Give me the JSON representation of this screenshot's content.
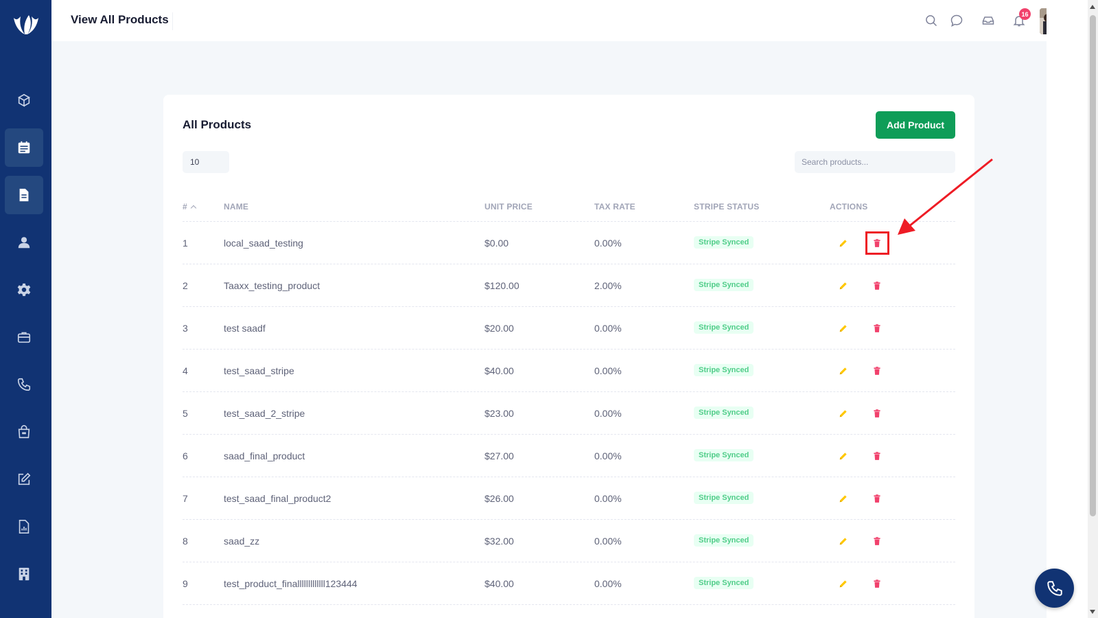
{
  "header": {
    "title": "View All Products",
    "notification_count": "16",
    "icons": [
      "search-icon",
      "chat-icon",
      "inbox-icon",
      "bell-icon"
    ]
  },
  "sidebar": {
    "items": [
      {
        "icon": "cube-icon",
        "active": false
      },
      {
        "icon": "calendar-list-icon",
        "active": true
      },
      {
        "icon": "document-icon",
        "active": true
      },
      {
        "icon": "user-icon",
        "active": false
      },
      {
        "icon": "gear-icon",
        "active": false
      },
      {
        "icon": "briefcase-icon",
        "active": false
      },
      {
        "icon": "phone-icon",
        "active": false
      },
      {
        "icon": "bag-icon",
        "active": false
      },
      {
        "icon": "edit-icon",
        "active": false
      },
      {
        "icon": "file-chart-icon",
        "active": false
      },
      {
        "icon": "building-icon",
        "active": false
      }
    ]
  },
  "card": {
    "title": "All Products",
    "add_button": "Add Product",
    "page_length": "10",
    "search_placeholder": "Search products..."
  },
  "table": {
    "columns": [
      "#",
      "NAME",
      "UNIT PRICE",
      "TAX RATE",
      "STRIPE STATUS",
      "ACTIONS"
    ],
    "rows": [
      {
        "num": "1",
        "name": "local_saad_testing",
        "price": "$0.00",
        "tax": "0.00%",
        "status": "Stripe Synced"
      },
      {
        "num": "2",
        "name": "Taaxx_testing_product",
        "price": "$120.00",
        "tax": "2.00%",
        "status": "Stripe Synced"
      },
      {
        "num": "3",
        "name": "test saadf",
        "price": "$20.00",
        "tax": "0.00%",
        "status": "Stripe Synced"
      },
      {
        "num": "4",
        "name": "test_saad_stripe",
        "price": "$40.00",
        "tax": "0.00%",
        "status": "Stripe Synced"
      },
      {
        "num": "5",
        "name": "test_saad_2_stripe",
        "price": "$23.00",
        "tax": "0.00%",
        "status": "Stripe Synced"
      },
      {
        "num": "6",
        "name": "saad_final_product",
        "price": "$27.00",
        "tax": "0.00%",
        "status": "Stripe Synced"
      },
      {
        "num": "7",
        "name": "test_saad_final_product2",
        "price": "$26.00",
        "tax": "0.00%",
        "status": "Stripe Synced"
      },
      {
        "num": "8",
        "name": "saad_zz",
        "price": "$32.00",
        "tax": "0.00%",
        "status": "Stripe Synced"
      },
      {
        "num": "9",
        "name": "test_product_finalllllllllllll123444",
        "price": "$40.00",
        "tax": "0.00%",
        "status": "Stripe Synced"
      }
    ]
  },
  "colors": {
    "sidebar": "#113373",
    "primary_button": "#0f9d58",
    "edit": "#ffc700",
    "delete": "#f1416c",
    "status_text": "#50cd89",
    "status_bg": "#e8fff3",
    "annotation": "#ee1c25"
  }
}
